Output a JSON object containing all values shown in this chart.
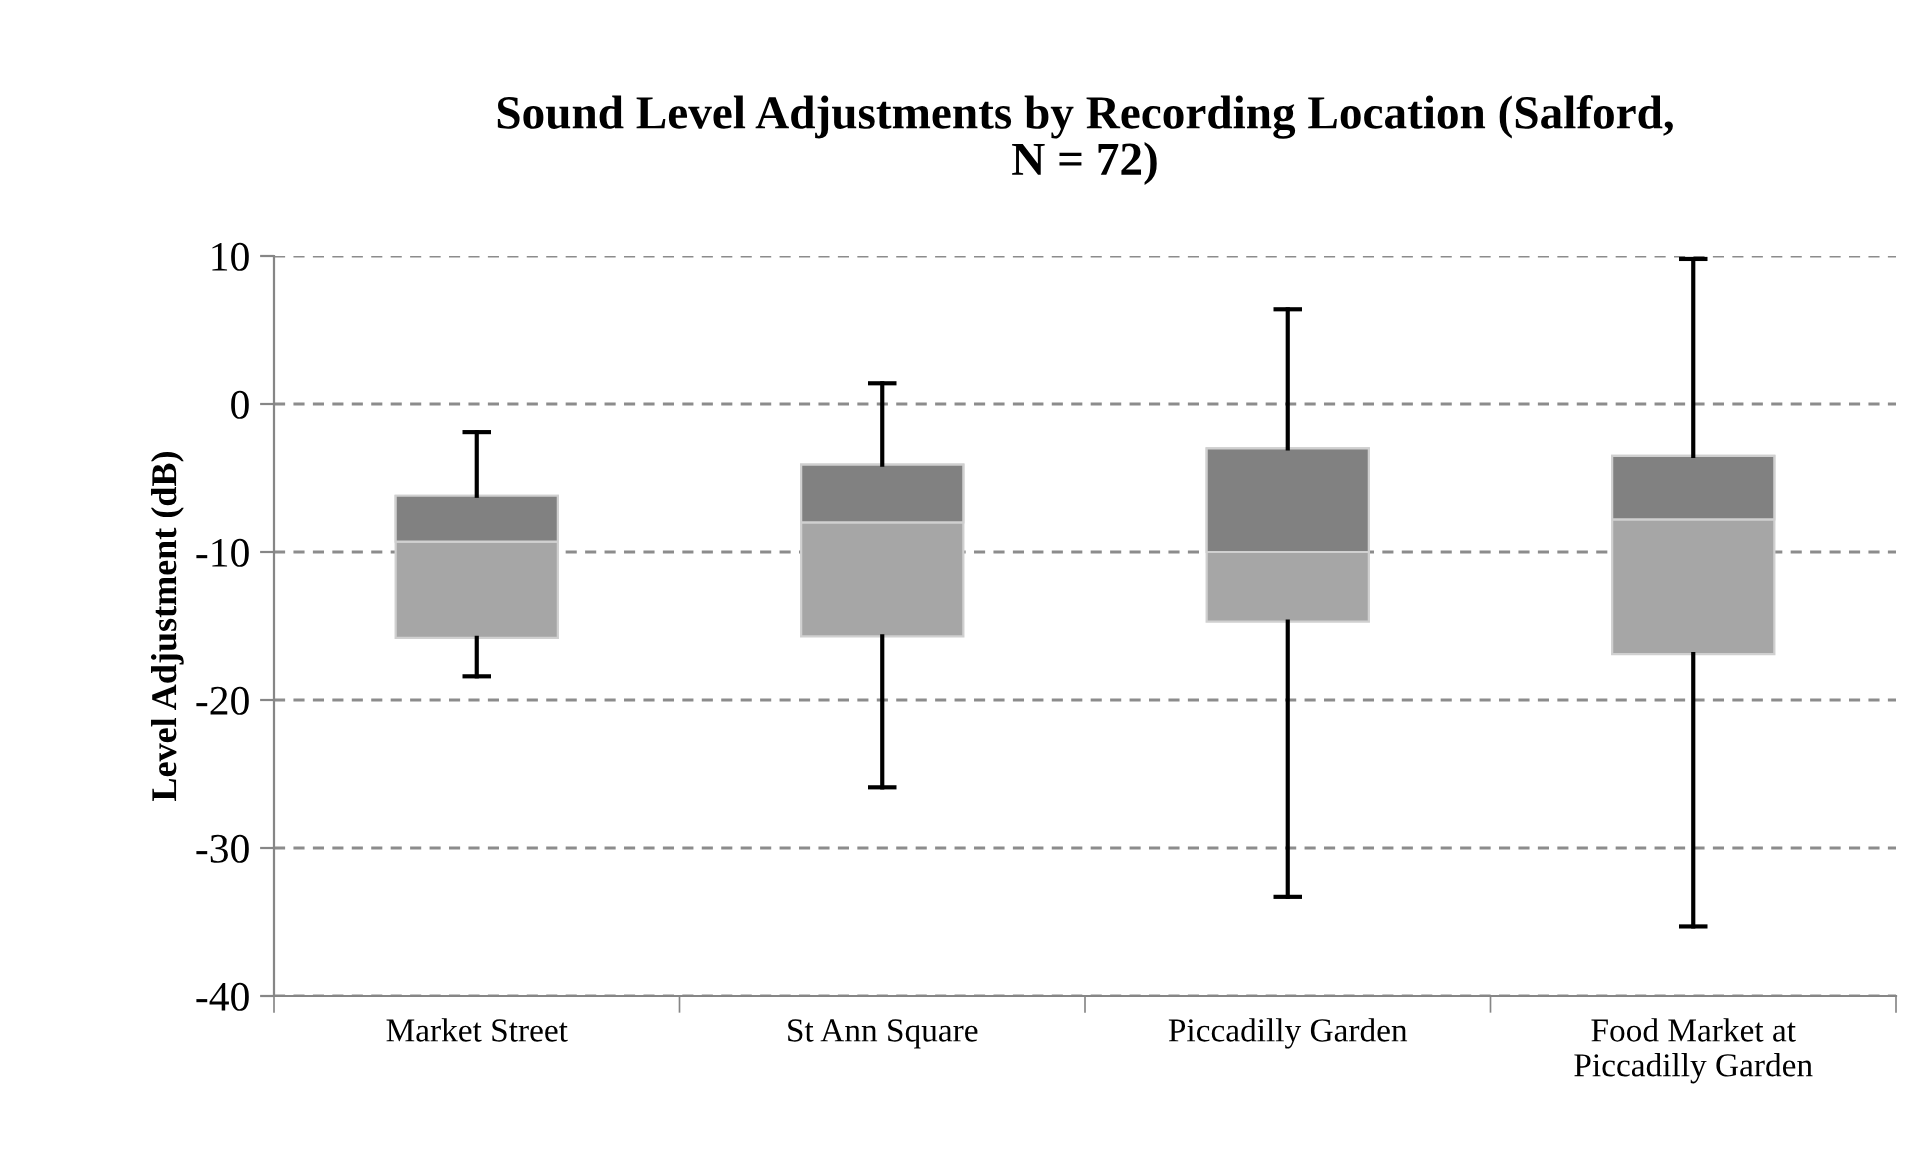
{
  "chart_data": {
    "type": "box",
    "title": "Sound Level Adjustments by Recording Location (Salford,\nN = 72)",
    "ylabel": "Level Adjustment (dB)",
    "categories": [
      "Market Street",
      "St Ann Square",
      "Piccadilly Garden",
      "Food Market at\nPiccadilly Garden"
    ],
    "boxes": [
      {
        "low": -18.4,
        "q1": -15.8,
        "median": -9.3,
        "q3": -6.2,
        "high": -1.9
      },
      {
        "low": -25.9,
        "q1": -15.7,
        "median": -8.0,
        "q3": -4.1,
        "high": 1.4
      },
      {
        "low": -33.3,
        "q1": -14.7,
        "median": -10.0,
        "q3": -3.0,
        "high": 6.4
      },
      {
        "low": -35.3,
        "q1": -16.9,
        "median": -7.8,
        "q3": -3.5,
        "high": 9.8
      }
    ],
    "colors": [
      "#a6a6a6",
      "#a6a6a6",
      "#a6a6a6",
      "#a6a6a6"
    ],
    "ylim": [
      -40,
      10
    ],
    "yticks": [
      -40,
      -30,
      -20,
      -10,
      0,
      10
    ],
    "grid": "y",
    "legend": false
  }
}
